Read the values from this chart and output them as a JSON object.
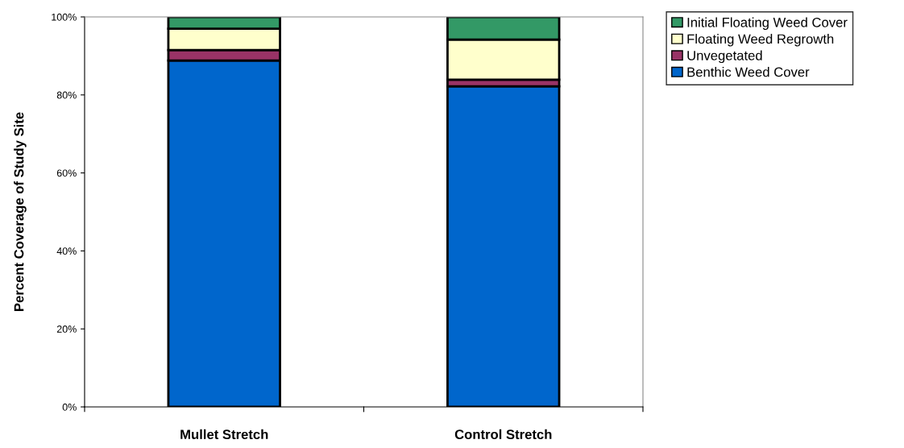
{
  "chart_data": {
    "type": "bar",
    "stacked": true,
    "ylabel": "Percent Coverage of Study Site",
    "categories": [
      "Mullet Stretch",
      "Control Stretch"
    ],
    "series": [
      {
        "name": "Benthic Weed Cover",
        "color": "#0066cc",
        "values": [
          88.8,
          82.2
        ]
      },
      {
        "name": "Unvegetated",
        "color": "#993366",
        "values": [
          2.7,
          1.7
        ]
      },
      {
        "name": "Floating Weed Regrowth",
        "color": "#ffffcc",
        "values": [
          5.5,
          10.3
        ]
      },
      {
        "name": "Initial Floating Weed Cover",
        "color": "#339966",
        "values": [
          3.0,
          5.8
        ]
      }
    ],
    "ylim": [
      0,
      100
    ],
    "yticks": [
      {
        "value": 0,
        "label": "0%"
      },
      {
        "value": 20,
        "label": "20%"
      },
      {
        "value": 40,
        "label": "40%"
      },
      {
        "value": 60,
        "label": "60%"
      },
      {
        "value": 80,
        "label": "80%"
      },
      {
        "value": 100,
        "label": "100%"
      }
    ],
    "grid": false,
    "legend": "top right"
  }
}
